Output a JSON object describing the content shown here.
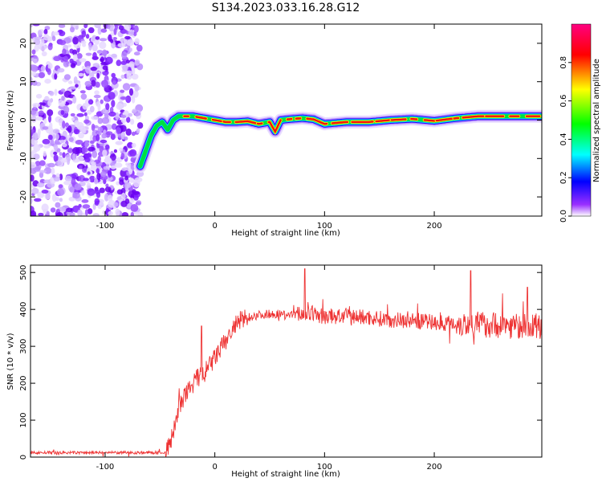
{
  "figure": {
    "title": "S134.2023.033.16.28.G12"
  },
  "chart_data": [
    {
      "type": "heatmap",
      "xlabel": "Height of straight line (km)",
      "ylabel": "Frequency (Hz)",
      "xlim": [
        -168,
        298
      ],
      "ylim": [
        -25,
        25
      ],
      "xticks": [
        -100,
        0,
        100,
        200
      ],
      "xticklabels": [
        "-100",
        "0",
        "100",
        "200"
      ],
      "yticks": [
        -20,
        -10,
        0,
        10,
        20
      ],
      "yticklabels": [
        "-20",
        "-10",
        "0",
        "10",
        "20"
      ],
      "grid": false,
      "colorbar": {
        "label": "Normalized spectral amplitude",
        "range": [
          0,
          1
        ],
        "ticks": [
          0.0,
          0.2,
          0.4,
          0.6,
          0.8
        ],
        "ticklabels": [
          "0.0",
          "0.2",
          "0.4",
          "0.6",
          "0.8"
        ],
        "colormap": [
          "#ffffff",
          "#7f00ff",
          "#0000ff",
          "#00ffff",
          "#00ff00",
          "#ffff00",
          "#ff0000",
          "#ff0080"
        ]
      },
      "noise_region_x": [
        -168,
        -65
      ],
      "ridge": {
        "x": [
          -68,
          -63,
          -58,
          -53,
          -48,
          -43,
          -38,
          -33,
          -28,
          -20,
          -10,
          0,
          10,
          20,
          30,
          40,
          50,
          55,
          60,
          70,
          80,
          90,
          100,
          120,
          140,
          160,
          180,
          200,
          220,
          240,
          260,
          280,
          298
        ],
        "freq": [
          -12,
          -8,
          -4,
          -1.5,
          -0.5,
          -2.5,
          0,
          1,
          1,
          1,
          0.5,
          0,
          -0.5,
          -0.5,
          -0.3,
          -1,
          -0.5,
          -3,
          0,
          0.3,
          0.5,
          0.2,
          -1,
          -0.5,
          -0.5,
          0,
          0.3,
          -0.2,
          0.5,
          1,
          1,
          1,
          1
        ]
      }
    },
    {
      "type": "line",
      "xlabel": "Height of straight line (km)",
      "ylabel": "SNR (10 * v/v)",
      "xlim": [
        -168,
        298
      ],
      "ylim": [
        0,
        520
      ],
      "xticks": [
        -100,
        0,
        100,
        200
      ],
      "xticklabels": [
        "-100",
        "0",
        "100",
        "200"
      ],
      "yticks": [
        0,
        100,
        200,
        300,
        400,
        500
      ],
      "yticklabels": [
        "0",
        "100",
        "200",
        "300",
        "400",
        "500"
      ],
      "grid": false,
      "series": [
        {
          "color": "#ee3333",
          "x": [
            -168,
            -140,
            -120,
            -100,
            -80,
            -60,
            -45,
            -40,
            -35,
            -30,
            -25,
            -20,
            -15,
            -10,
            -5,
            0,
            5,
            10,
            15,
            20,
            25,
            30,
            40,
            50,
            60,
            70,
            80,
            90,
            100,
            120,
            140,
            160,
            180,
            200,
            220,
            240,
            260,
            280,
            298
          ],
          "y": [
            12,
            12,
            12,
            12,
            12,
            12,
            12,
            40,
            110,
            150,
            175,
            200,
            215,
            225,
            245,
            270,
            290,
            315,
            340,
            360,
            372,
            378,
            385,
            388,
            388,
            385,
            390,
            388,
            380,
            382,
            378,
            372,
            370,
            365,
            362,
            360,
            358,
            355,
            355
          ],
          "spikes": [
            {
              "x": -12,
              "y": 355
            },
            {
              "x": 82,
              "y": 510
            },
            {
              "x": 233,
              "y": 505
            },
            {
              "x": 285,
              "y": 460
            }
          ]
        }
      ]
    }
  ]
}
